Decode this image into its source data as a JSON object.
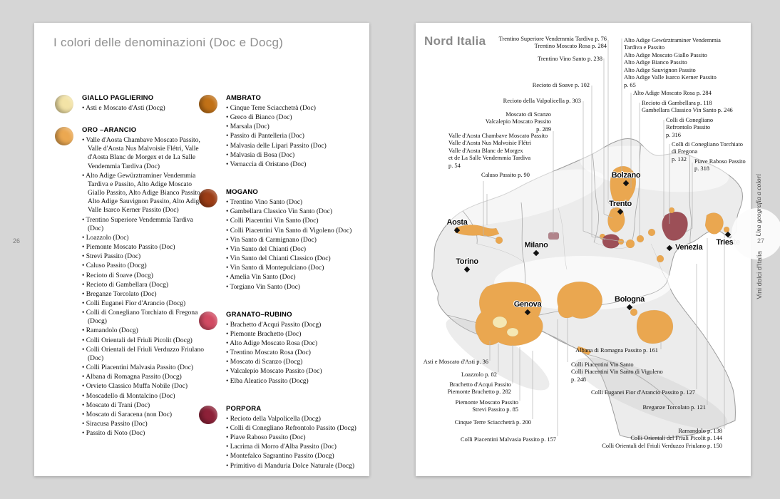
{
  "left_page": {
    "page_number": "26",
    "title": "I colori delle denominazioni (Doc e Docg)",
    "categories": [
      {
        "name": "GIALLO PAGLIERINO",
        "color": "#f3e3a6",
        "items": [
          "Asti e Moscato d'Asti (Docg)"
        ]
      },
      {
        "name": "ORO –ARANCIO",
        "color": "#eba851",
        "items": [
          "Valle d'Aosta Chambave Moscato Passito, Valle d'Aosta Nus Malvoisie Flétri, Valle d'Aosta Blanc de Morgex et de La Salle Vendemmia Tardiva (Doc)",
          "Alto Adige Gewürztraminer Vendemmia Tardiva e Passito, Alto Adige Moscato Giallo Passito, Alto Adige Bianco Passito, Alto Adige Sauvignon Passito, Alto Adige Valle Isarco Kerner Passito (Doc)",
          "Trentino Superiore Vendemmia Tardiva (Doc)",
          "Loazzolo (Doc)",
          "Piemonte Moscato Passito (Doc)",
          "Strevi Passito (Doc)",
          "Caluso Passito (Docg)",
          "Recioto di Soave (Docg)",
          "Recioto di Gambellara (Docg)",
          "Breganze Torcolato (Doc)",
          "Colli Euganei Fior d'Arancio (Docg)",
          "Colli di Conegliano Torchiato di Fregona (Docg)",
          "Ramandolo (Docg)",
          "Colli Orientali del Friuli Picolit (Docg)",
          "Colli Orientali del Friuli Verduzzo Friulano (Doc)",
          "Colli Piacentini Malvasia Passito (Doc)",
          "Albana di Romagna Passito (Docg)",
          "Orvieto Classico Muffa Nobile (Doc)",
          "Moscadello di Montalcino (Doc)",
          "Moscato di Trani (Doc)",
          "Moscato di Saracena (non Doc)",
          "Siracusa Passito (Doc)",
          "Passito di Noto (Doc)"
        ]
      },
      {
        "name": "AMBRATO",
        "color": "#c17117",
        "items": [
          "Cinque Terre Sciacchetrà (Doc)",
          "Greco di Bianco (Doc)",
          "Marsala (Doc)",
          "Passito di Pantelleria (Doc)",
          "Malvasia delle Lipari Passito (Doc)",
          "Malvasia di Bosa (Doc)",
          "Vernaccia di Oristano (Doc)"
        ]
      },
      {
        "name": "MOGANO",
        "color": "#9c3d16",
        "items": [
          "Trentino Vino Santo (Doc)",
          "Gambellara Classico Vin Santo (Doc)",
          "Colli Piacentini Vin Santo (Doc)",
          "Colli Piacentini Vin Santo di Vigoleno (Doc)",
          "Vin Santo di Carmignano (Doc)",
          "Vin Santo del Chianti (Doc)",
          "Vin Santo del Chianti Classico (Doc)",
          "Vin Santo di Montepulciano (Doc)",
          "Amelia Vin Santo (Doc)",
          "Torgiano Vin Santo (Doc)"
        ]
      },
      {
        "name": "GRANATO–RUBINO",
        "color": "#d14b63",
        "items": [
          "Brachetto d'Acqui Passito (Docg)",
          "Piemonte Brachetto (Doc)",
          "Alto Adige Moscato Rosa (Doc)",
          "Trentino Moscato Rosa (Doc)",
          "Moscato di Scanzo (Docg)",
          "Valcalepio Moscato Passito (Doc)",
          "Elba Aleatico Passito (Docg)"
        ]
      },
      {
        "name": "PORPORA",
        "color": "#8d2138",
        "items": [
          "Recioto della Valpolicella (Docg)",
          "Colli di Conegliano Refrontolo Passito (Docg)",
          "Piave Raboso Passito (Doc)",
          "Lacrima di Morro d'Alba Passito (Doc)",
          "Montefalco Sagrantino Passito (Docg)",
          "Primitivo di Manduria Dolce Naturale (Docg)"
        ]
      }
    ]
  },
  "right_page": {
    "title": "Nord Italia",
    "cities": [
      "Aosta",
      "Torino",
      "Milano",
      "Genova",
      "Bolzano",
      "Trento",
      "Venezia",
      "Trieste",
      "Bologna"
    ],
    "labels": [
      "Trentino Superiore Vendemmia Tardiva p. 76\nTrentino Moscato Rosa p. 284",
      "Trentino Vino Santo p. 238",
      "Recioto di Soave p. 102",
      "Recioto della Valpolicella p. 303",
      "Moscato di Scanzo\nValcalepio Moscato Passito\np. 289",
      "Valle d'Aosta Chambave Moscato Passito\nValle d'Aosta Nus Malvoisie Flétri\nValle d'Aosta Blanc de Morgex\net de La Salle Vendemmia Tardiva\np. 54",
      "Caluso Passito p. 90",
      "Alto Adige Gewürztraminer Vendemmia\nTardiva e Passito\nAlto Adige Moscato Giallo Passito\nAlto Adige Bianco Passito\nAlto Adige Sauvignon Passito\nAlto Adige Valle Isarco Kerner Passito\np. 65",
      "Alto Adige Moscato Rosa p. 284",
      "Recioto di Gambellara p. 118\nGambellara Classico Vin Santo p. 246",
      "Colli di Conegliano\nRefrontolo Passito\np. 316",
      "Colli di Conegliano Torchiato\ndi Fregona\np. 132",
      "Piave Raboso Passito\np. 318",
      "Asti e Moscato d'Asti p. 36",
      "Loazzolo p. 82",
      "Brachetto d'Acqui Passito\nPiemonte Brachetto p. 282",
      "Piemonte Moscato Passito\nStrevi Passito p. 85",
      "Cinque Terre Sciacchetrà p. 200",
      "Colli Piacentini Malvasia Passito p. 157",
      "Albana di Romagna Passito p. 161",
      "Colli Piacentini Vin Santo\nColli Piacentini Vin Santo di Vigoleno\np. 248",
      "Colli Euganei Fior d'Arancio Passito p. 127",
      "Breganze Torcolato p. 121",
      "Ramandolo p. 138\nColli Orientali del Friuli Picolit p. 144\nColli Orientali del Friuli Verduzzo Friulano p. 150"
    ],
    "map_colors": {
      "land": "#ececec",
      "orange_regions": "#eaa750",
      "pale_yellow_regions": "#f5e8b4",
      "maroon_regions": "#9c4f57",
      "mauve_regions": "#b1848b"
    },
    "side_tab": {
      "series_title": "Una geografia a colori",
      "page_number": "27",
      "book_title": "Vini dolci d'Italia"
    }
  }
}
